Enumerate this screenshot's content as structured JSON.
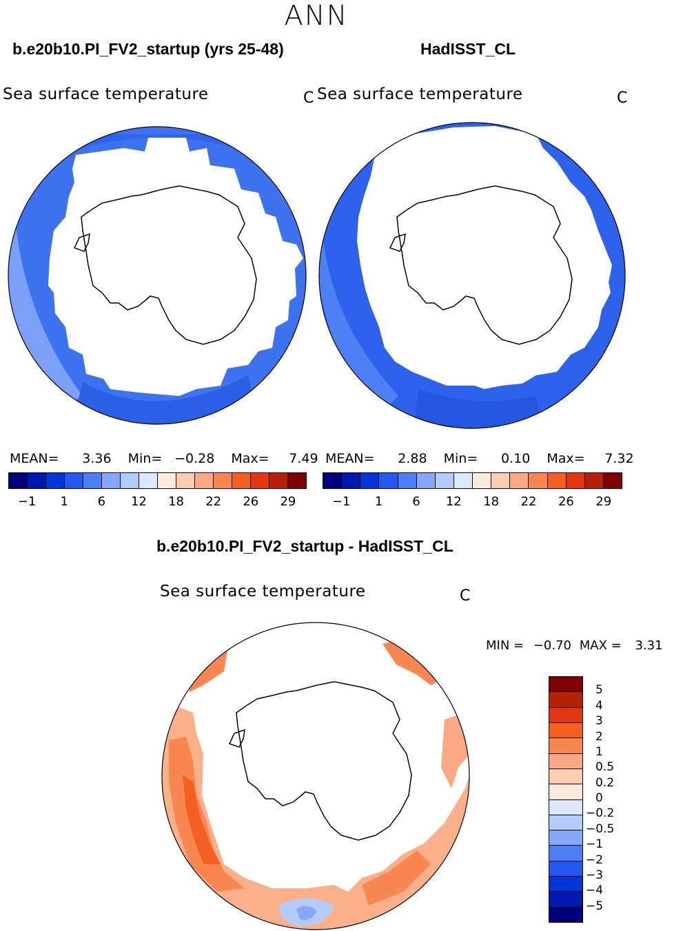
{
  "season": "ANN",
  "left_panel": {
    "title": "b.e20b10.PI_FV2_startup (yrs 25-48)",
    "variable": "Sea surface temperature",
    "unit": "C",
    "stats": {
      "mean_label": "MEAN=",
      "mean": "3.36",
      "min_label": "Min=",
      "min": "−0.28",
      "max_label": "Max=",
      "max": "7.49"
    }
  },
  "right_panel": {
    "title": "HadISST_CL",
    "variable": "Sea surface temperature",
    "unit": "C",
    "stats": {
      "mean_label": "MEAN=",
      "mean": "2.88",
      "min_label": "Min=",
      "min": "0.10",
      "max_label": "Max=",
      "max": "7.32"
    }
  },
  "abs_colorbar": {
    "colors": [
      "#00007f",
      "#0019b0",
      "#0035d8",
      "#2058f0",
      "#4a7ff8",
      "#86a8fa",
      "#b4ccfc",
      "#dbe8fd",
      "#fdeadb",
      "#fcccb0",
      "#fba982",
      "#f98752",
      "#f55f22",
      "#e3350f",
      "#b82003",
      "#7f0000"
    ],
    "ticks": [
      "−1",
      "1",
      "6",
      "12",
      "18",
      "22",
      "26",
      "29"
    ]
  },
  "diff_panel": {
    "title": "b.e20b10.PI_FV2_startup - HadISST_CL",
    "variable": "Sea surface temperature",
    "unit": "C",
    "min_label": "MIN =",
    "min": "−0.70",
    "max_label": "MAX =",
    "max": "3.31"
  },
  "diff_colorbar": {
    "colors": [
      "#7f0000",
      "#b82003",
      "#e3350f",
      "#f55f22",
      "#f98752",
      "#fba982",
      "#fcccb0",
      "#fdeadb",
      "#dbe8fd",
      "#b4ccfc",
      "#86a8fa",
      "#4a7ff8",
      "#2058f0",
      "#0035d8",
      "#0019b0",
      "#00007f"
    ],
    "labels": [
      "5",
      "4",
      "3",
      "2",
      "1",
      "0.5",
      "0.2",
      "0",
      "−0.2",
      "−0.5",
      "−1",
      "−2",
      "−3",
      "−4",
      "−5"
    ]
  }
}
